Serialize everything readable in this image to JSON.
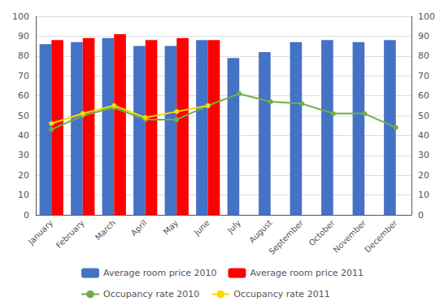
{
  "chart_data": {
    "type": "bar",
    "categories": [
      "January",
      "February",
      "March",
      "April",
      "May",
      "June",
      "July",
      "August",
      "September",
      "October",
      "November",
      "December"
    ],
    "series": [
      {
        "name": "Average room price 2010",
        "type": "bar",
        "color": "#4472C4",
        "values": [
          86,
          87,
          89,
          85,
          85,
          88,
          79,
          82,
          87,
          88,
          87,
          88
        ]
      },
      {
        "name": "Average room price 2011",
        "type": "bar",
        "color": "#FF0000",
        "values": [
          88,
          89,
          91,
          88,
          89,
          88,
          null,
          null,
          null,
          null,
          null,
          null
        ]
      },
      {
        "name": "Occupancy rate 2010",
        "type": "line",
        "axis": "y2",
        "color": "#70AD47",
        "marker": "circle",
        "values": [
          43,
          50,
          54,
          48,
          48,
          55,
          61,
          57,
          56,
          51,
          51,
          44
        ]
      },
      {
        "name": "Occupancy rate 2011",
        "type": "line",
        "axis": "y2",
        "color": "#FFD700",
        "marker": "circle",
        "values": [
          46,
          51,
          55,
          49,
          52,
          55,
          null,
          null,
          null,
          null,
          null,
          null
        ]
      }
    ],
    "ylim": [
      0,
      100
    ],
    "yticks": [
      0,
      10,
      20,
      30,
      40,
      50,
      60,
      70,
      80,
      90,
      100
    ],
    "y2lim": [
      0,
      100
    ],
    "y2ticks": [
      0,
      10,
      20,
      30,
      40,
      50,
      60,
      70,
      80,
      90,
      100
    ],
    "grid": true,
    "legend": "bottom"
  }
}
